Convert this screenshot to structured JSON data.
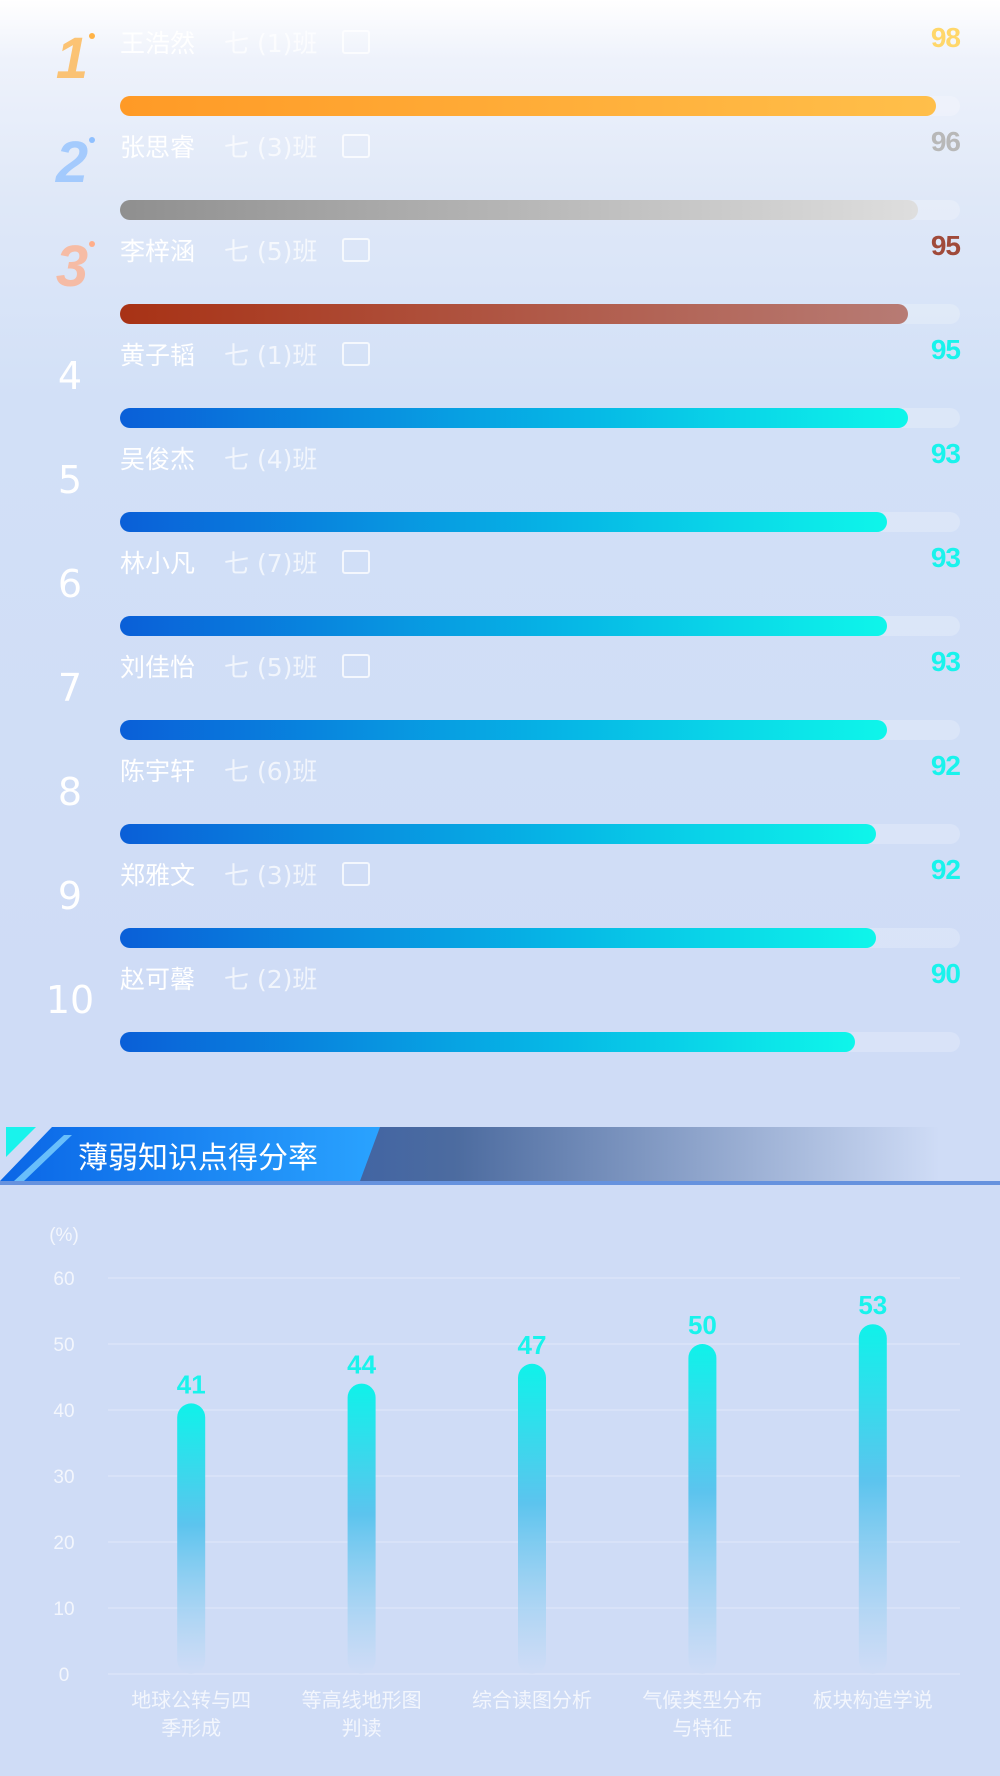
{
  "colors": {
    "accent_cyan": "#19f3ec",
    "bar_blue_start": "#0a5fd8",
    "gold": "#ffd76a",
    "silver": "#b8b8b8",
    "bronze": "#a04a3a"
  },
  "ranking": {
    "max_score": 100,
    "items": [
      {
        "rank": "1",
        "name": "王浩然",
        "class": "七 (1)班",
        "score": "98",
        "value": 98,
        "style": "gold",
        "has_tag": true
      },
      {
        "rank": "2",
        "name": "张思睿",
        "class": "七 (3)班",
        "score": "96",
        "value": 96,
        "style": "silver",
        "has_tag": true
      },
      {
        "rank": "3",
        "name": "李梓涵",
        "class": "七 (5)班",
        "score": "95",
        "value": 95,
        "style": "bronze",
        "has_tag": true
      },
      {
        "rank": "4",
        "name": "黄子韬",
        "class": "七 (1)班",
        "score": "95",
        "value": 95,
        "style": "blue",
        "has_tag": true
      },
      {
        "rank": "5",
        "name": "吴俊杰",
        "class": "七 (4)班",
        "score": "93",
        "value": 93,
        "style": "blue",
        "has_tag": false
      },
      {
        "rank": "6",
        "name": "林小凡",
        "class": "七 (7)班",
        "score": "93",
        "value": 93,
        "style": "blue",
        "has_tag": true
      },
      {
        "rank": "7",
        "name": "刘佳怡",
        "class": "七 (5)班",
        "score": "93",
        "value": 93,
        "style": "blue",
        "has_tag": true
      },
      {
        "rank": "8",
        "name": "陈宇轩",
        "class": "七 (6)班",
        "score": "92",
        "value": 92,
        "style": "blue",
        "has_tag": false
      },
      {
        "rank": "9",
        "name": "郑雅文",
        "class": "七 (3)班",
        "score": "92",
        "value": 92,
        "style": "blue",
        "has_tag": true
      },
      {
        "rank": "10",
        "name": "赵可馨",
        "class": "七 (2)班",
        "score": "90",
        "value": 90,
        "style": "blue",
        "has_tag": false
      }
    ]
  },
  "section": {
    "title": "薄弱知识点得分率"
  },
  "chart_data": {
    "type": "bar",
    "ylabel": "(%)",
    "ylim": [
      0,
      60
    ],
    "yticks": [
      0,
      10,
      20,
      30,
      40,
      50,
      60
    ],
    "categories": [
      [
        "地球公转与四",
        "季形成"
      ],
      [
        "等高线地形图",
        "判读"
      ],
      [
        "综合读图分析"
      ],
      [
        "气候类型分布",
        "与特征"
      ],
      [
        "板块构造学说"
      ]
    ],
    "values": [
      41,
      44,
      47,
      50,
      53
    ],
    "value_labels": [
      "41",
      "44",
      "47",
      "50",
      "53"
    ],
    "grid": true
  }
}
